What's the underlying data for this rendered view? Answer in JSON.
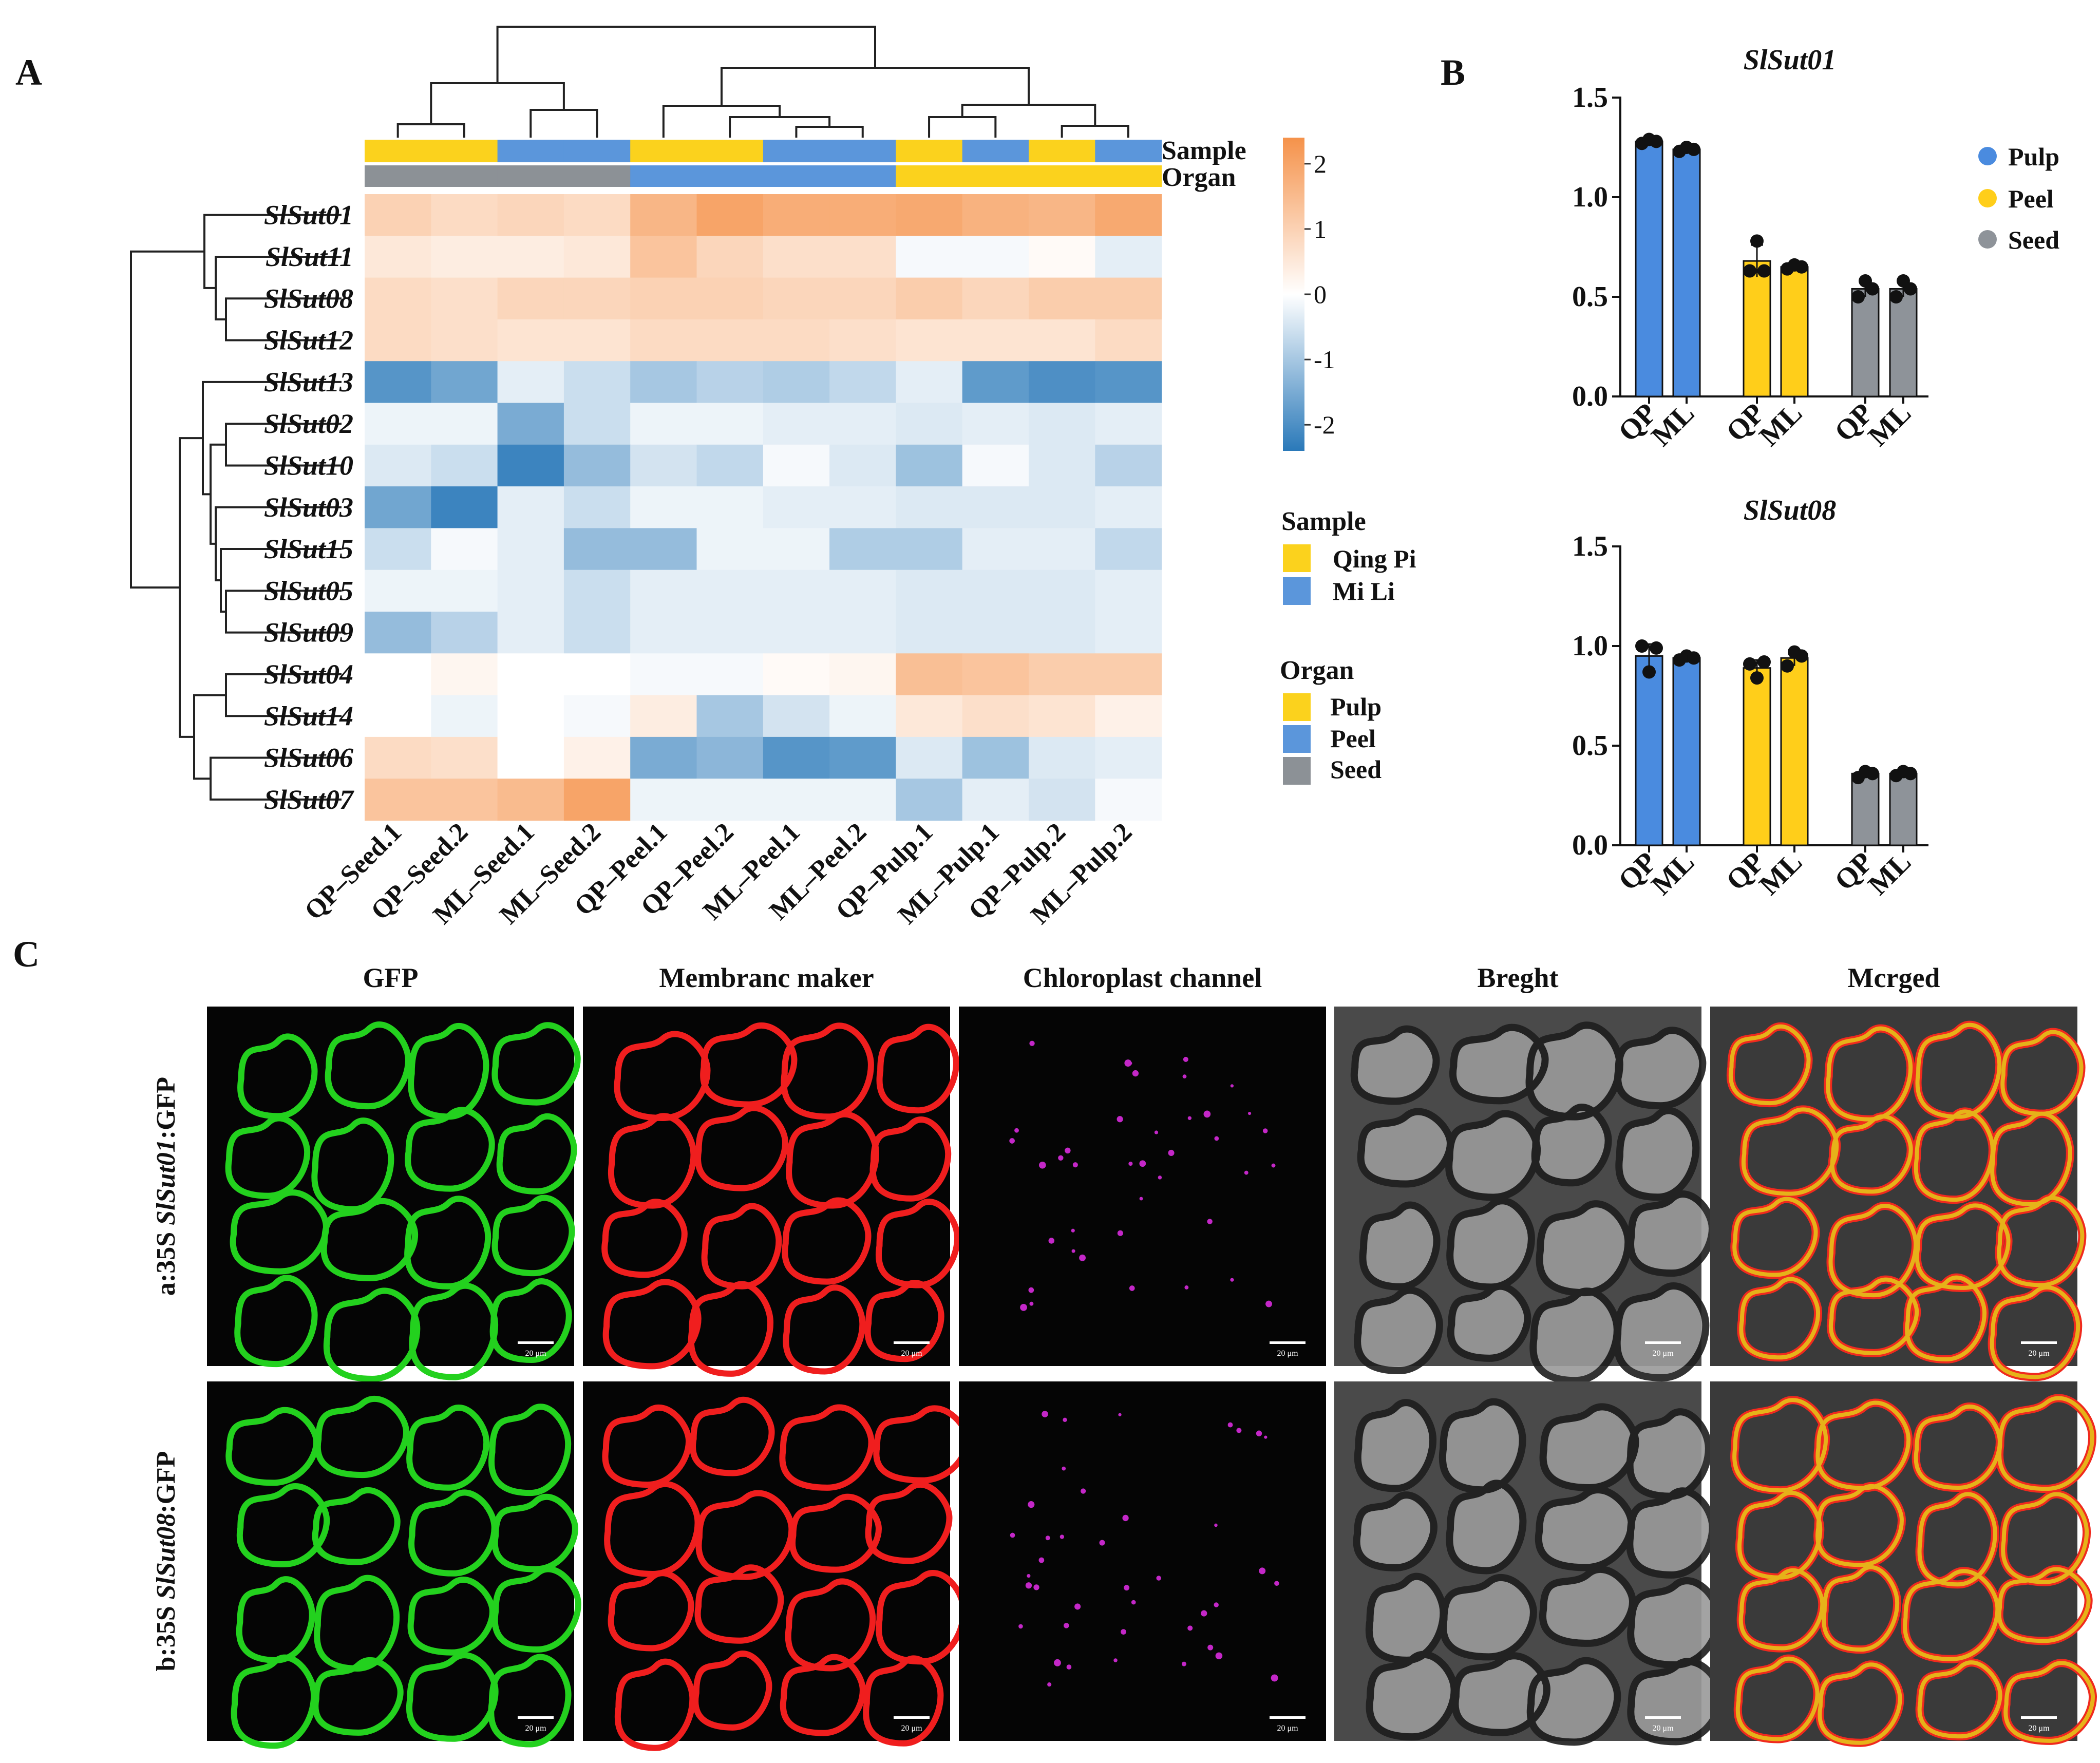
{
  "panels": {
    "a": "A",
    "b": "B",
    "c": "C"
  },
  "colors": {
    "qing_pi": "#FBD21D",
    "mi_li": "#5B96DB",
    "pulp": "#FBD21D",
    "peel": "#5B96DB",
    "seed": "#8C9196",
    "bar_pulp": "#4A8BDF",
    "bar_peel": "#FFCE1A",
    "bar_seed": "#8E9399",
    "low": "#2A79B9",
    "mid": "#FFFFFF",
    "high": "#F5924A"
  },
  "heatmap": {
    "track_labels": [
      "Sample",
      "Organ"
    ],
    "rows": [
      "SlSut01",
      "SlSut11",
      "SlSut08",
      "SlSut12",
      "SlSut13",
      "SlSut02",
      "SlSut10",
      "SlSut03",
      "SlSut15",
      "SlSut05",
      "SlSut09",
      "SlSut04",
      "SlSut14",
      "SlSut06",
      "SlSut07"
    ],
    "columns": [
      "QP–Seed.1",
      "QP–Seed.2",
      "ML–Seed.1",
      "ML–Seed.2",
      "QP–Peel.1",
      "QP–Peel.2",
      "ML–Peel.1",
      "ML–Peel.2",
      "QP–Pulp.1",
      "ML–Pulp.1",
      "QP–Pulp.2",
      "ML–Pulp.2"
    ],
    "sample_track": [
      "Qing Pi",
      "Qing Pi",
      "Mi Li",
      "Mi Li",
      "Qing Pi",
      "Qing Pi",
      "Mi Li",
      "Mi Li",
      "Qing Pi",
      "Mi Li",
      "Qing Pi",
      "Mi Li"
    ],
    "organ_track": [
      "Seed",
      "Seed",
      "Seed",
      "Seed",
      "Peel",
      "Peel",
      "Peel",
      "Peel",
      "Pulp",
      "Pulp",
      "Pulp",
      "Pulp"
    ],
    "values": [
      [
        1.0,
        0.8,
        0.9,
        0.8,
        1.6,
        2.0,
        1.8,
        1.8,
        1.9,
        1.7,
        1.6,
        1.9
      ],
      [
        0.5,
        0.4,
        0.4,
        0.5,
        1.3,
        0.9,
        0.7,
        0.7,
        -0.1,
        -0.1,
        0.1,
        -0.3
      ],
      [
        0.8,
        0.7,
        0.9,
        0.9,
        1.0,
        1.0,
        0.9,
        0.9,
        1.1,
        0.9,
        1.1,
        1.1
      ],
      [
        0.8,
        0.7,
        0.6,
        0.6,
        0.8,
        0.8,
        0.8,
        0.7,
        0.6,
        0.6,
        0.6,
        0.8
      ],
      [
        -1.9,
        -1.6,
        -0.3,
        -0.6,
        -1.0,
        -0.8,
        -0.9,
        -0.7,
        -0.3,
        -1.8,
        -2.0,
        -1.9
      ],
      [
        -0.2,
        -0.2,
        -1.5,
        -0.6,
        -0.2,
        -0.2,
        -0.3,
        -0.3,
        -0.4,
        -0.3,
        -0.4,
        -0.3
      ],
      [
        -0.4,
        -0.6,
        -2.2,
        -1.2,
        -0.5,
        -0.7,
        -0.1,
        -0.4,
        -1.1,
        -0.1,
        -0.4,
        -0.8
      ],
      [
        -1.6,
        -2.2,
        -0.3,
        -0.6,
        -0.2,
        -0.2,
        -0.3,
        -0.3,
        -0.4,
        -0.4,
        -0.4,
        -0.3
      ],
      [
        -0.6,
        -0.1,
        -0.3,
        -1.2,
        -1.2,
        -0.2,
        -0.2,
        -0.9,
        -0.9,
        -0.3,
        -0.3,
        -0.7
      ],
      [
        -0.2,
        -0.2,
        -0.3,
        -0.6,
        -0.3,
        -0.3,
        -0.3,
        -0.3,
        -0.4,
        -0.4,
        -0.4,
        -0.3
      ],
      [
        -1.2,
        -0.8,
        -0.3,
        -0.6,
        -0.3,
        -0.3,
        -0.3,
        -0.3,
        -0.4,
        -0.4,
        -0.4,
        -0.3
      ],
      [
        0.0,
        0.2,
        0.0,
        0.0,
        -0.1,
        -0.1,
        0.1,
        0.2,
        1.4,
        1.3,
        1.1,
        1.1
      ],
      [
        0.0,
        -0.2,
        0.0,
        -0.1,
        0.4,
        -1.0,
        -0.5,
        -0.2,
        0.5,
        0.7,
        0.6,
        0.3
      ],
      [
        0.8,
        0.7,
        0.0,
        0.3,
        -1.5,
        -1.3,
        -1.9,
        -1.8,
        -0.4,
        -1.1,
        -0.4,
        -0.3
      ],
      [
        1.3,
        1.3,
        1.5,
        2.0,
        -0.2,
        -0.2,
        -0.2,
        -0.2,
        -1.0,
        -0.3,
        -0.5,
        -0.1
      ]
    ],
    "scale": {
      "min": -2.4,
      "max": 2.4,
      "ticks": [
        2,
        1,
        0,
        -1,
        -2
      ],
      "tick_labels": [
        "2",
        "1",
        "0",
        "-1",
        "-2"
      ]
    },
    "legend_sample": {
      "title": "Sample",
      "items": [
        "Qing Pi",
        "Mi Li"
      ]
    },
    "legend_organ": {
      "title": "Organ",
      "items": [
        "Pulp",
        "Peel",
        "Seed"
      ]
    }
  },
  "chart_data": [
    {
      "type": "heatmap",
      "rows": [
        "SlSut01",
        "SlSut11",
        "SlSut08",
        "SlSut12",
        "SlSut13",
        "SlSut02",
        "SlSut10",
        "SlSut03",
        "SlSut15",
        "SlSut05",
        "SlSut09",
        "SlSut04",
        "SlSut14",
        "SlSut06",
        "SlSut07"
      ],
      "columns": [
        "QP–Seed.1",
        "QP–Seed.2",
        "ML–Seed.1",
        "ML–Seed.2",
        "QP–Peel.1",
        "QP–Peel.2",
        "ML–Peel.1",
        "ML–Peel.2",
        "QP–Pulp.1",
        "ML–Pulp.1",
        "QP–Pulp.2",
        "ML–Pulp.2"
      ],
      "color_range": [
        -2,
        2
      ]
    },
    {
      "type": "bar",
      "title": "SlSut01",
      "categories": [
        "QP",
        "ML",
        "QP",
        "ML",
        "QP",
        "ML"
      ],
      "groups": [
        "Pulp",
        "Pulp",
        "Peel",
        "Peel",
        "Seed",
        "Seed"
      ],
      "values": [
        1.28,
        1.24,
        0.68,
        0.65,
        0.54,
        0.54
      ],
      "errors": [
        0.02,
        0.02,
        0.08,
        0.02,
        0.04,
        0.04
      ],
      "points": [
        [
          1.27,
          1.29,
          1.28
        ],
        [
          1.23,
          1.25,
          1.24
        ],
        [
          0.63,
          0.78,
          0.63
        ],
        [
          0.64,
          0.66,
          0.65
        ],
        [
          0.5,
          0.58,
          0.54
        ],
        [
          0.5,
          0.58,
          0.54
        ]
      ],
      "ylim": [
        0,
        1.5
      ],
      "yticks": [
        "0.0",
        "0.5",
        "1.0",
        "1.5"
      ]
    },
    {
      "type": "bar",
      "title": "SlSut08",
      "categories": [
        "QP",
        "ML",
        "QP",
        "ML",
        "QP",
        "ML"
      ],
      "groups": [
        "Pulp",
        "Pulp",
        "Peel",
        "Peel",
        "Seed",
        "Seed"
      ],
      "values": [
        0.95,
        0.94,
        0.89,
        0.94,
        0.36,
        0.36
      ],
      "errors": [
        0.06,
        0.02,
        0.04,
        0.04,
        0.02,
        0.02
      ],
      "points": [
        [
          1.0,
          0.87,
          0.99
        ],
        [
          0.93,
          0.95,
          0.94
        ],
        [
          0.91,
          0.84,
          0.92
        ],
        [
          0.9,
          0.97,
          0.95
        ],
        [
          0.34,
          0.37,
          0.36
        ],
        [
          0.35,
          0.37,
          0.36
        ]
      ],
      "ylim": [
        0,
        1.5
      ],
      "yticks": [
        "0.0",
        "0.5",
        "1.0",
        "1.5"
      ]
    }
  ],
  "bars_legend": {
    "items": [
      "Pulp",
      "Peel",
      "Seed"
    ]
  },
  "microscopy": {
    "columns": [
      "GFP",
      "Membranc maker",
      "Chloroplast channel",
      "Breght",
      "Mcrged"
    ],
    "rows": [
      {
        "prefix": "a:35S ",
        "gene": "SlSut01",
        "suffix": ":GFP"
      },
      {
        "prefix": "b:35S ",
        "gene": "SlSut08",
        "suffix": ":GFP"
      }
    ],
    "scale_bar": "20 μm",
    "channel_colors": [
      "#23D11E",
      "#F01E1E",
      "#C427C8",
      "#C8C8C8",
      "#E6B219"
    ]
  }
}
